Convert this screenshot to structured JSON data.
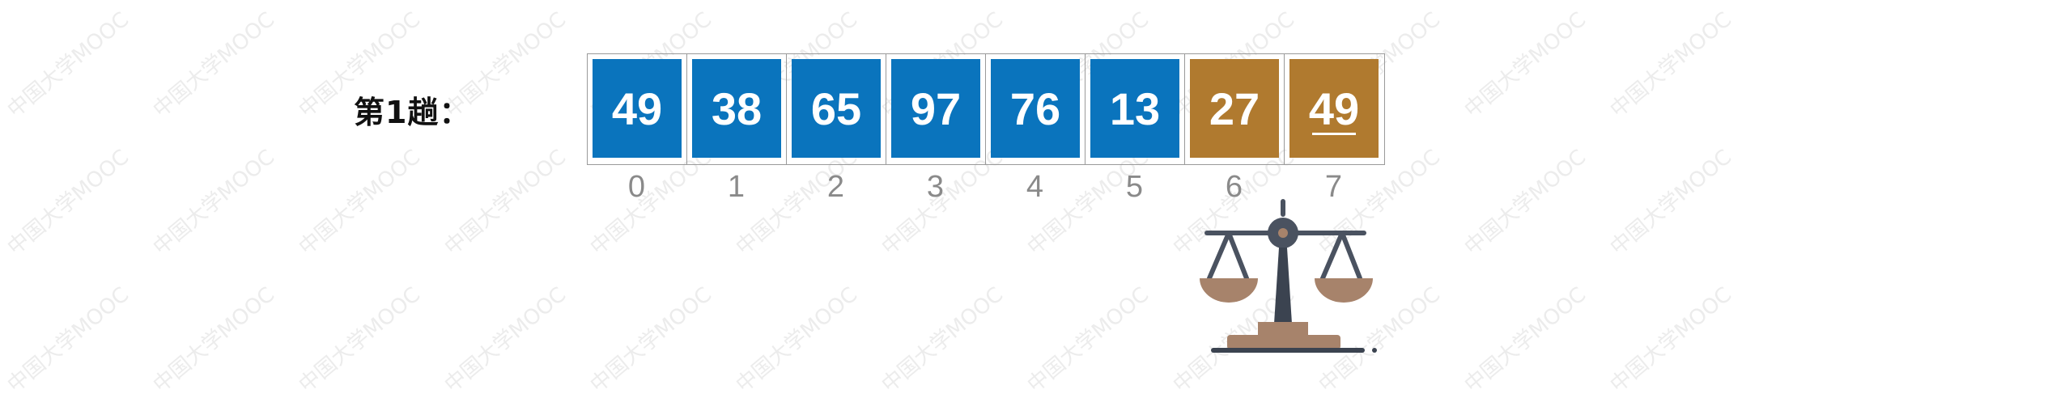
{
  "watermark_text": "中国大学MOOC",
  "pass_label": "第1趟：",
  "array": {
    "cells": [
      {
        "value": "49",
        "index": "0",
        "state": "unsorted",
        "underlined": false
      },
      {
        "value": "38",
        "index": "1",
        "state": "unsorted",
        "underlined": false
      },
      {
        "value": "65",
        "index": "2",
        "state": "unsorted",
        "underlined": false
      },
      {
        "value": "97",
        "index": "3",
        "state": "unsorted",
        "underlined": false
      },
      {
        "value": "76",
        "index": "4",
        "state": "unsorted",
        "underlined": false
      },
      {
        "value": "13",
        "index": "5",
        "state": "unsorted",
        "underlined": false
      },
      {
        "value": "27",
        "index": "6",
        "state": "comparing",
        "underlined": false
      },
      {
        "value": "49",
        "index": "7",
        "state": "comparing",
        "underlined": true
      }
    ]
  },
  "colors": {
    "unsorted": "#0a74bd",
    "comparing": "#b07a2f",
    "scale_metal": "#4a5260",
    "scale_pan": "#a7836b"
  },
  "icons": {
    "comparison": "balance-scale-icon"
  }
}
